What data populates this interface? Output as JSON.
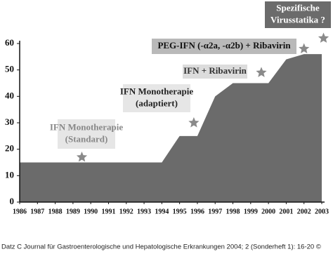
{
  "chart_data": {
    "type": "area",
    "x": [
      1986,
      1994,
      1995,
      1996,
      1997,
      1998,
      2000,
      2001,
      2002,
      2003
    ],
    "values": [
      15,
      15,
      25,
      25,
      40,
      45,
      45,
      54,
      56,
      56
    ],
    "color": "#6b6b6b",
    "xlim": [
      1986,
      2003
    ],
    "xticks": [
      1986,
      1987,
      1988,
      1989,
      1990,
      1991,
      1992,
      1993,
      1994,
      1995,
      1996,
      1997,
      1998,
      1999,
      2000,
      2001,
      2002,
      2003
    ],
    "ylim": [
      0,
      60
    ],
    "yticks": [
      0,
      10,
      20,
      30,
      40,
      50,
      60
    ],
    "annotations": [
      {
        "lines": [
          "IFN Monotherapie",
          "(Standard)"
        ],
        "x": 1989.5,
        "y": 17
      },
      {
        "lines": [
          "IFN Monotherapie",
          "(adaptiert)"
        ],
        "x": 1995.8,
        "y": 30
      },
      {
        "lines": [
          "IFN + Ribavirin"
        ],
        "x": 1999.6,
        "y": 49
      },
      {
        "lines": [
          "PEG-IFN (-α2a, -α2b) + Ribavirin"
        ],
        "x": 2002,
        "y": 58
      },
      {
        "lines": [
          "Spezifische",
          "Virusstatika ?"
        ],
        "x": 2003.1,
        "y": 62
      }
    ],
    "source": "Datz C Journal für Gastroenterologische und Hepatologische Erkrankungen 2004; 2 (Sonderheft 1): 16-20 ©"
  }
}
